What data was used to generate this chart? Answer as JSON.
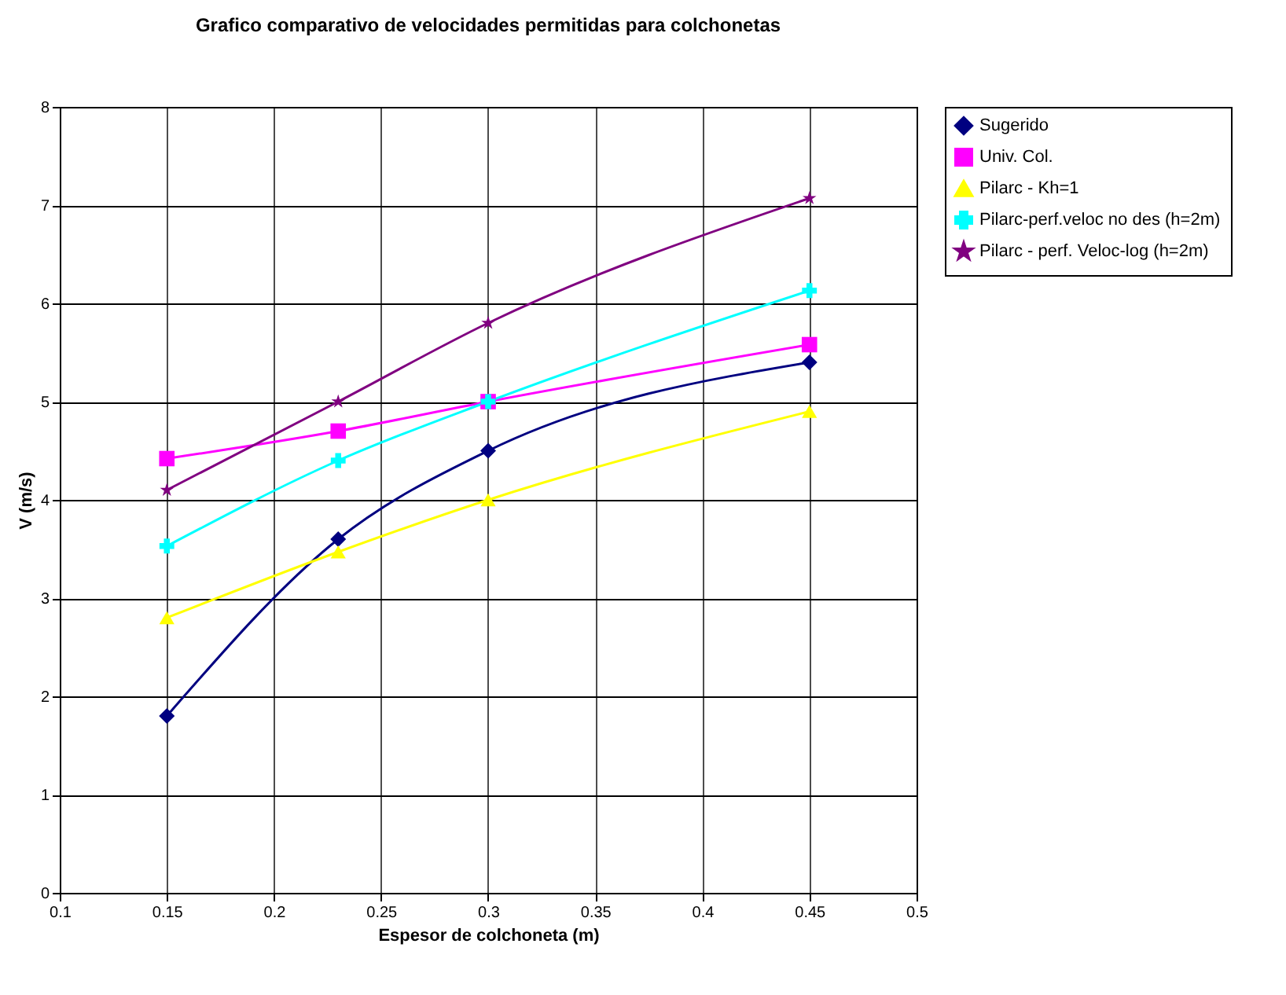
{
  "chart_data": {
    "type": "line",
    "title": "Grafico comparativo de velocidades permitidas para colchonetas",
    "xlabel": "Espesor de colchoneta (m)",
    "ylabel": "V (m/s)",
    "x": [
      0.15,
      0.23,
      0.3,
      0.45
    ],
    "series": [
      {
        "name": "Sugerido",
        "color": "#000080",
        "marker": "diamond",
        "values": [
          1.8,
          3.6,
          4.5,
          5.4
        ]
      },
      {
        "name": "Univ. Col.",
        "color": "#ff00ff",
        "marker": "square",
        "values": [
          4.42,
          4.7,
          5.0,
          5.58
        ]
      },
      {
        "name": "Pilarc - Kh=1",
        "color": "#ffff00",
        "marker": "triangle",
        "values": [
          2.8,
          3.47,
          4.0,
          4.9
        ]
      },
      {
        "name": "Pilarc-perf.veloc no des (h=2m)",
        "color": "#00ffff",
        "marker": "cross",
        "values": [
          3.53,
          4.4,
          5.0,
          6.13
        ]
      },
      {
        "name": "Pilarc - perf. Veloc-log (h=2m)",
        "color": "#800080",
        "marker": "star",
        "values": [
          4.1,
          5.0,
          5.8,
          7.07
        ]
      }
    ],
    "xlim": [
      0.1,
      0.5
    ],
    "xticks": [
      0.1,
      0.15,
      0.2,
      0.25,
      0.3,
      0.35,
      0.4,
      0.45,
      0.5
    ],
    "ylim": [
      0,
      8
    ],
    "yticks": [
      0,
      1,
      2,
      3,
      4,
      5,
      6,
      7,
      8
    ],
    "grid": true,
    "legend": "right",
    "line_style": "solid"
  }
}
